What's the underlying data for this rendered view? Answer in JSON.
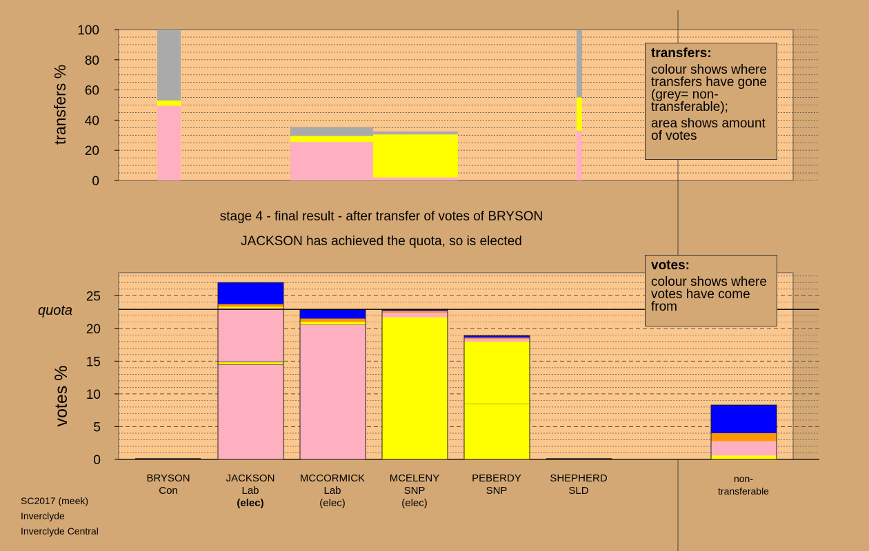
{
  "colors": {
    "background": "#d4a874",
    "plot_bg": "#fcc78d",
    "BRYSON": "#0000ff",
    "JACKSON": "#ffb0c0",
    "MCCORMICK": "#ff9800",
    "MCELENY": "#ffff00",
    "PEBERDY": "#ffff00",
    "SHEPHERD": "#ff9800",
    "nontransferable": "#aaaaaa"
  },
  "captions": {
    "stage": "stage 4 - final result - after transfer of votes of BRYSON",
    "result": "JACKSON has achieved the quota, so is elected"
  },
  "legend_transfers": {
    "title": "transfers:",
    "line1": "colour shows where transfers have gone (grey= non-transferable);",
    "line2": "area shows amount of votes"
  },
  "legend_votes": {
    "title": "votes:",
    "line1": "colour shows where votes have come from"
  },
  "source": {
    "line1": "SC2017 (meek)",
    "line2": "Inverclyde",
    "line3": "Inverclyde Central"
  },
  "candidates": [
    {
      "name": "BRYSON",
      "party": "Con",
      "status": ""
    },
    {
      "name": "JACKSON",
      "party": "Lab",
      "status": "(elec)",
      "status_bold": true
    },
    {
      "name": "MCCORMICK",
      "party": "Lab",
      "status": "(elec)"
    },
    {
      "name": "MCELENY",
      "party": "SNP",
      "status": "(elec)"
    },
    {
      "name": "PEBERDY",
      "party": "SNP",
      "status": ""
    },
    {
      "name": "SHEPHERD",
      "party": "SLD",
      "status": ""
    },
    {
      "name": "non-",
      "party": "transferable",
      "status": ""
    }
  ],
  "chart_data": [
    {
      "type": "bar",
      "ylabel": "transfers %",
      "ylim": [
        0,
        100
      ],
      "yticks": [
        0,
        20,
        40,
        60,
        80,
        100
      ],
      "bars": [
        {
          "from": "BRYSON",
          "width_rel": 0.5,
          "segments": [
            {
              "color": "JACKSON",
              "value": 49.5
            },
            {
              "color": "MCELENY",
              "value": 3.5
            },
            {
              "color": "nontransferable",
              "value": 47
            }
          ]
        },
        {
          "from": "MCCORMICK",
          "width_rel": 1.7,
          "segments": [
            {
              "color": "JACKSON",
              "value": 25.5
            },
            {
              "color": "MCELENY",
              "value": 4
            },
            {
              "color": "nontransferable",
              "value": 6
            }
          ]
        },
        {
          "from": "MCELENY",
          "width_rel": 1.7,
          "segments": [
            {
              "color": "JACKSON",
              "value": 2
            },
            {
              "color": "PEBERDY",
              "value": 28.5
            },
            {
              "color": "nontransferable",
              "value": 2
            }
          ]
        },
        {
          "from": "SHEPHERD",
          "width_rel": 0.12,
          "segments": [
            {
              "color": "JACKSON",
              "value": 33
            },
            {
              "color": "MCELENY",
              "value": 22
            },
            {
              "color": "nontransferable",
              "value": 45
            }
          ]
        }
      ]
    },
    {
      "type": "bar",
      "ylabel": "votes %",
      "quota_label": "quota",
      "quota": 22.9,
      "ylim": [
        0,
        28.5
      ],
      "yticks": [
        0,
        5,
        10,
        15,
        20,
        25
      ],
      "categories": [
        "BRYSON",
        "JACKSON",
        "MCCORMICK",
        "MCELENY",
        "PEBERDY",
        "SHEPHERD",
        "non-transferable"
      ],
      "stacks": [
        [],
        [
          {
            "color": "JACKSON",
            "value": 14.5,
            "edge": true
          },
          {
            "color": "MCELENY",
            "value": 0.4,
            "edge": true
          },
          {
            "color": "JACKSON",
            "value": 8.2,
            "edge": true
          },
          {
            "color": "MCELENY",
            "value": 0.2
          },
          {
            "color": "MCCORMICK",
            "value": 0.4
          },
          {
            "color": "BRYSON",
            "value": 3.3
          }
        ],
        [
          {
            "color": "JACKSON",
            "value": 20.6,
            "edge": true
          },
          {
            "color": "MCELENY",
            "value": 0.4
          },
          {
            "color": "MCCORMICK",
            "value": 0.5
          },
          {
            "color": "BRYSON",
            "value": 1.4
          }
        ],
        [
          {
            "color": "MCELENY",
            "value": 21.7
          },
          {
            "color": "JACKSON",
            "value": 0.7
          },
          {
            "color": "MCCORMICK",
            "value": 0.3
          },
          {
            "color": "BRYSON",
            "value": 0.2
          }
        ],
        [
          {
            "color": "MCELENY",
            "value": 8.5,
            "edge": true
          },
          {
            "color": "MCELENY",
            "value": 9.5
          },
          {
            "color": "JACKSON",
            "value": 0.4
          },
          {
            "color": "MCCORMICK",
            "value": 0.2
          },
          {
            "color": "BRYSON",
            "value": 0.3
          }
        ],
        [],
        [
          {
            "color": "MCELENY",
            "value": 0.6
          },
          {
            "color": "JACKSON",
            "value": 2.2
          },
          {
            "color": "MCCORMICK",
            "value": 1.2
          },
          {
            "color": "BRYSON",
            "value": 4.3
          }
        ]
      ]
    }
  ]
}
